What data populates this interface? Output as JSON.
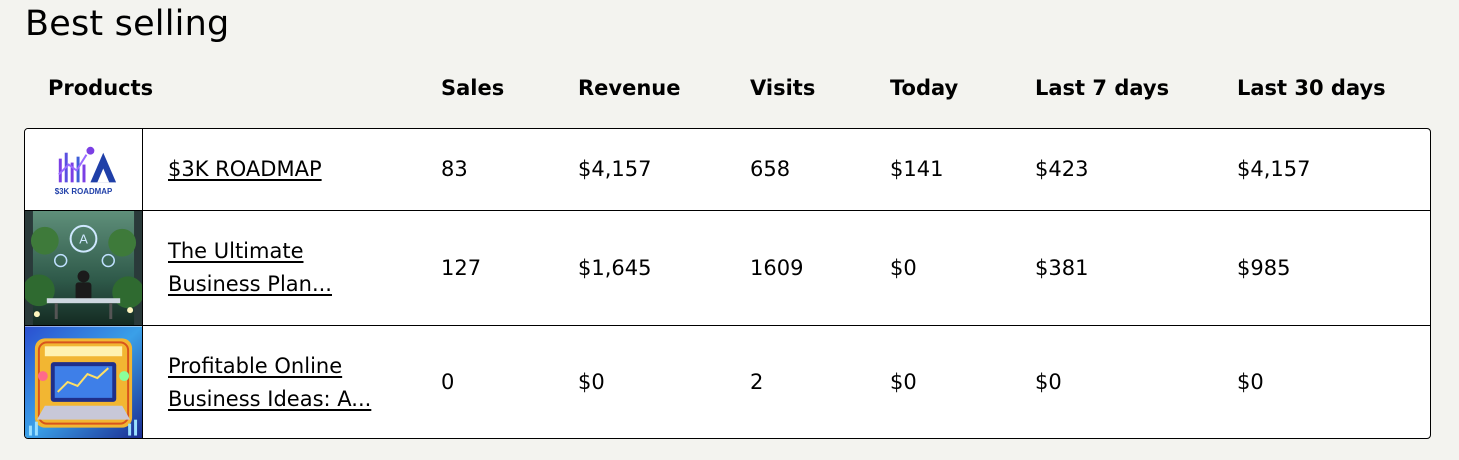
{
  "section": {
    "title": "Best selling"
  },
  "table": {
    "columns": {
      "products": "Products",
      "sales": "Sales",
      "revenue": "Revenue",
      "visits": "Visits",
      "today": "Today",
      "last7": "Last 7 days",
      "last30": "Last 30 days"
    },
    "rows": [
      {
        "name_lines": [
          "$3K ROADMAP"
        ],
        "thumbnail": {
          "icon": "roadmap-logo-thumbnail",
          "caption": "$3K ROADMAP"
        },
        "sales": "83",
        "revenue": "$4,157",
        "visits": "658",
        "today": "$141",
        "last7": "$423",
        "last30": "$4,157"
      },
      {
        "name_lines": [
          "The Ultimate",
          "Business Plan..."
        ],
        "thumbnail": {
          "icon": "business-plan-thumbnail"
        },
        "sales": "127",
        "revenue": "$1,645",
        "visits": "1609",
        "today": "$0",
        "last7": "$381",
        "last30": "$985"
      },
      {
        "name_lines": [
          "Profitable Online",
          "Business Ideas: A..."
        ],
        "thumbnail": {
          "icon": "online-business-ideas-thumbnail"
        },
        "sales": "0",
        "revenue": "$0",
        "visits": "2",
        "today": "$0",
        "last7": "$0",
        "last30": "$0"
      }
    ]
  },
  "colors": {
    "page_background": "#f3f3ef",
    "table_background": "#ffffff",
    "border": "#000000",
    "logo_purple": "#7b3fe4",
    "logo_blue": "#1f3fa8"
  }
}
